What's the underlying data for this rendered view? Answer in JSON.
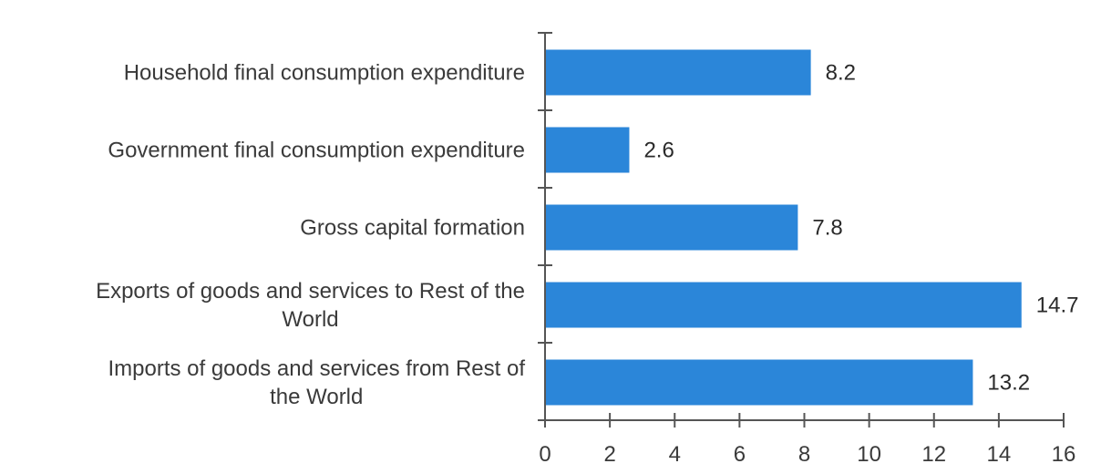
{
  "chart_data": {
    "type": "bar",
    "orientation": "horizontal",
    "categories": [
      [
        "Household final consumption expenditure"
      ],
      [
        "Government final consumption expenditure"
      ],
      [
        "Gross capital formation"
      ],
      [
        "Exports of goods and services to Rest of the",
        "World"
      ],
      [
        "Imports of goods and services from Rest of",
        "the World"
      ]
    ],
    "values": [
      8.2,
      2.6,
      7.8,
      14.7,
      13.2
    ],
    "data_labels": [
      "8.2",
      "2.6",
      "7.8",
      "14.7",
      "13.2"
    ],
    "xlim": [
      0,
      16
    ],
    "x_ticks": [
      0,
      2,
      4,
      6,
      8,
      10,
      12,
      14,
      16
    ],
    "x_tick_labels": [
      "0",
      "2",
      "4",
      "6",
      "8",
      "10",
      "12",
      "14",
      "16"
    ],
    "title": "",
    "xlabel": "",
    "ylabel": "",
    "grid": false,
    "legend": "none",
    "bar_color": "#2b86d9"
  }
}
